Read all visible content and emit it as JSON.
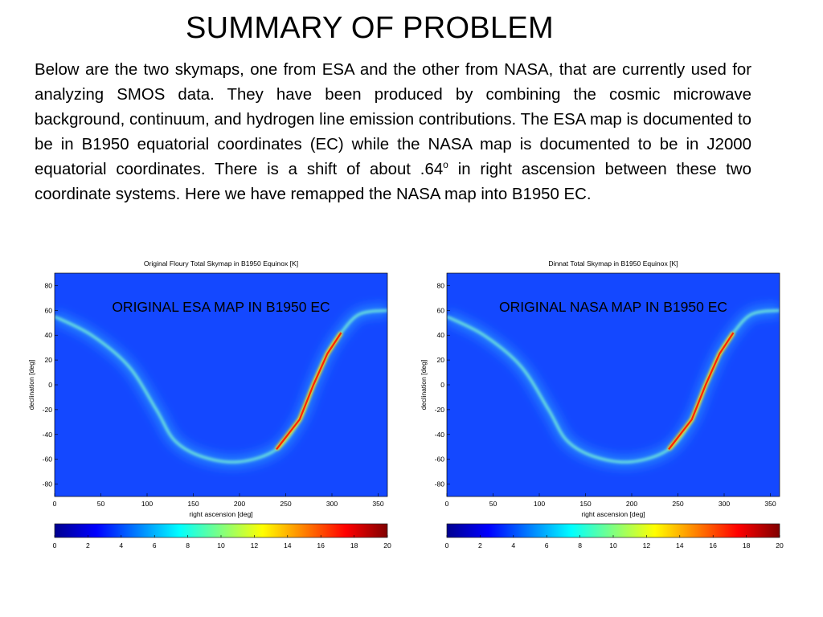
{
  "slide": {
    "title": "SUMMARY OF PROBLEM",
    "paragraph": {
      "before_sup": "Below are the two skymaps, one from ESA and the other from NASA, that are currently used for analyzing SMOS data. They have been produced by combining the cosmic microwave background, continuum, and hydrogen line emission contributions. The ESA map is documented to be in B1950 equatorial coordinates (EC) while the NASA map is documented to be in J2000 equatorial coordinates. There is a shift of about .64",
      "sup": "o",
      "after_sup": " in right ascension between these two coordinate systems. Here we have remapped the NASA map into B1950 EC."
    }
  },
  "chart_data": [
    {
      "type": "heatmap",
      "title": "Original Floury Total Skymap in B1950 Equinox [K]",
      "overlay_label": "ORIGINAL ESA MAP IN B1950 EC",
      "xlabel": "right ascension [deg]",
      "ylabel": "declination [deg]",
      "xlim": [
        0,
        360
      ],
      "ylim": [
        -90,
        90
      ],
      "xticks": [
        0,
        50,
        100,
        150,
        200,
        250,
        300,
        350
      ],
      "yticks": [
        80,
        60,
        40,
        20,
        0,
        -20,
        -40,
        -60,
        -80
      ],
      "colorbar": {
        "range": [
          0,
          20
        ],
        "ticks": [
          0,
          2,
          4,
          6,
          8,
          10,
          12,
          14,
          16,
          18,
          20
        ],
        "colormap": "jet"
      },
      "galactic_plane": [
        {
          "ra": 0,
          "dec": 55
        },
        {
          "ra": 40,
          "dec": 40
        },
        {
          "ra": 80,
          "dec": 15
        },
        {
          "ra": 110,
          "dec": -20
        },
        {
          "ra": 130,
          "dec": -45
        },
        {
          "ra": 160,
          "dec": -58
        },
        {
          "ra": 200,
          "dec": -62
        },
        {
          "ra": 240,
          "dec": -52
        },
        {
          "ra": 265,
          "dec": -28
        },
        {
          "ra": 280,
          "dec": 0
        },
        {
          "ra": 295,
          "dec": 25
        },
        {
          "ra": 310,
          "dec": 42
        },
        {
          "ra": 330,
          "dec": 57
        },
        {
          "ra": 360,
          "dec": 60
        }
      ]
    },
    {
      "type": "heatmap",
      "title": "Dinnat Total Skymap in B1950 Equinox [K]",
      "overlay_label": "ORIGINAL NASA MAP IN B1950 EC",
      "xlabel": "right ascension [deg]",
      "ylabel": "declination [deg]",
      "xlim": [
        0,
        360
      ],
      "ylim": [
        -90,
        90
      ],
      "xticks": [
        0,
        50,
        100,
        150,
        200,
        250,
        300,
        350
      ],
      "yticks": [
        80,
        60,
        40,
        20,
        0,
        -20,
        -40,
        -60,
        -80
      ],
      "colorbar": {
        "range": [
          0,
          20
        ],
        "ticks": [
          0,
          2,
          4,
          6,
          8,
          10,
          12,
          14,
          16,
          18,
          20
        ],
        "colormap": "jet"
      },
      "galactic_plane": [
        {
          "ra": 0,
          "dec": 55
        },
        {
          "ra": 40,
          "dec": 40
        },
        {
          "ra": 80,
          "dec": 15
        },
        {
          "ra": 110,
          "dec": -20
        },
        {
          "ra": 130,
          "dec": -45
        },
        {
          "ra": 160,
          "dec": -58
        },
        {
          "ra": 200,
          "dec": -62
        },
        {
          "ra": 240,
          "dec": -52
        },
        {
          "ra": 265,
          "dec": -28
        },
        {
          "ra": 280,
          "dec": 0
        },
        {
          "ra": 295,
          "dec": 25
        },
        {
          "ra": 310,
          "dec": 42
        },
        {
          "ra": 330,
          "dec": 57
        },
        {
          "ra": 360,
          "dec": 60
        }
      ]
    }
  ],
  "colors": {
    "map_background": "#1448ff",
    "band_glow": "#2fa8ff",
    "band_core": "#ff2200"
  }
}
